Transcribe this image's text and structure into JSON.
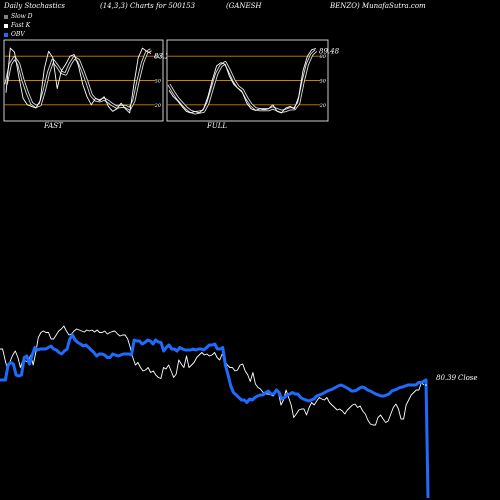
{
  "header": {
    "title_left": "Daily Stochastics",
    "title_params": "(14,3,3) Charts for 500153",
    "title_company_a": "(GANESH",
    "title_company_b": "BENZO) MunafaSutra.com"
  },
  "legend": [
    {
      "label": "Slow  D",
      "color": "#808080"
    },
    {
      "label": "Fast K",
      "color": "#ffffff"
    },
    {
      "label": "OBV",
      "color": "#1e6cff"
    }
  ],
  "colors": {
    "background": "#000000",
    "level_line": "#d08000",
    "obv": "#1e6cff",
    "close": "#ffffff",
    "slow_d": "#999999"
  },
  "chart_data": [
    {
      "type": "line",
      "panel": "FAST",
      "title": "FAST",
      "last_value_label": "83.29",
      "ylim": [
        0,
        100
      ],
      "levels": [
        20,
        50,
        80
      ],
      "level_labels": [
        "20",
        "50",
        "80"
      ],
      "series": [
        {
          "name": "Fast K",
          "values": [
            35,
            90,
            85,
            55,
            28,
            20,
            18,
            16,
            25,
            65,
            86,
            78,
            40,
            62,
            70,
            80,
            82,
            68,
            45,
            30,
            20,
            28,
            25,
            30,
            18,
            12,
            15,
            22,
            15,
            10,
            45,
            78,
            90,
            86,
            83.3
          ]
        },
        {
          "name": "Slow  D",
          "values": [
            45,
            70,
            78,
            70,
            50,
            35,
            22,
            18,
            20,
            38,
            60,
            75,
            68,
            60,
            58,
            70,
            78,
            75,
            62,
            48,
            32,
            26,
            25,
            27,
            24,
            20,
            17,
            18,
            18,
            15,
            25,
            50,
            72,
            85,
            88
          ]
        }
      ]
    },
    {
      "type": "line",
      "panel": "FULL",
      "title": "FULL",
      "last_value_label": "89.48",
      "ylim": [
        0,
        100
      ],
      "levels": [
        20,
        50,
        80
      ],
      "level_labels": [
        "20",
        "50",
        "80"
      ],
      "series": [
        {
          "name": "Fast K",
          "values": [
            38,
            30,
            25,
            18,
            12,
            10,
            12,
            10,
            15,
            30,
            50,
            68,
            72,
            70,
            55,
            45,
            40,
            35,
            22,
            15,
            13,
            15,
            14,
            15,
            20,
            12,
            10,
            16,
            18,
            15,
            30,
            62,
            80,
            88,
            89.5
          ]
        },
        {
          "name": "Slow  D",
          "values": [
            45,
            36,
            28,
            22,
            16,
            12,
            10,
            11,
            12,
            22,
            40,
            58,
            68,
            72,
            62,
            50,
            42,
            38,
            28,
            20,
            15,
            14,
            14,
            14,
            16,
            14,
            12,
            13,
            15,
            15,
            22,
            48,
            70,
            82,
            87
          ]
        }
      ]
    },
    {
      "type": "line",
      "panel": "price",
      "close_label": "80.39",
      "close_suffix": "Close",
      "series": [
        {
          "name": "Close",
          "values": [
            62,
            62,
            40,
            20,
            38,
            50,
            58,
            45,
            25,
            40,
            38,
            36,
            50,
            30,
            55,
            85,
            95,
            98,
            95,
            95,
            82,
            82,
            90,
            98,
            102,
            108,
            98,
            90,
            92,
            98,
            102,
            100,
            98,
            96,
            100,
            98,
            100,
            96,
            100,
            95,
            95,
            98,
            92,
            95,
            97,
            98,
            92,
            88,
            90,
            90,
            82,
            65,
            45,
            30,
            35,
            25,
            18,
            20,
            25,
            15,
            18,
            10,
            5,
            3,
            25,
            22,
            30,
            18,
            5,
            12,
            40,
            32,
            25,
            48,
            25,
            30,
            35,
            45,
            50,
            55,
            50,
            52,
            48,
            50,
            55,
            45,
            40,
            52,
            38,
            30,
            25,
            25,
            18,
            20,
            30,
            32,
            18,
            10,
            -3,
            15,
            -8,
            -15,
            -18,
            -25,
            -28,
            -28,
            -30,
            -32,
            -18,
            -25,
            -50,
            -40,
            -20,
            -35,
            -50,
            -75,
            -68,
            -60,
            -58,
            -58,
            -70,
            -55,
            -45,
            -50,
            -42,
            -35,
            -38,
            -40,
            -35,
            -45,
            -50,
            -55,
            -60,
            -58,
            -62,
            -68,
            -60,
            -55,
            -50,
            -48,
            -55,
            -52,
            -62,
            -68,
            -80,
            -88,
            -90,
            -90,
            -75,
            -70,
            -78,
            -85,
            -82,
            -68,
            -55,
            -48,
            -58,
            -78,
            -78,
            -50,
            -40,
            -30,
            -25,
            -20,
            -20,
            -5,
            -10
          ]
        },
        {
          "name": "OBV",
          "values": [
            10,
            10,
            10,
            40,
            45,
            42,
            20,
            18,
            20,
            55,
            58,
            42,
            60,
            75,
            70,
            72,
            72,
            72,
            75,
            78,
            72,
            70,
            65,
            62,
            68,
            72,
            92,
            100,
            90,
            85,
            82,
            78,
            80,
            75,
            70,
            65,
            58,
            62,
            62,
            60,
            55,
            55,
            62,
            60,
            58,
            60,
            62,
            62,
            62,
            60,
            90,
            88,
            88,
            82,
            85,
            90,
            88,
            82,
            90,
            86,
            85,
            68,
            75,
            80,
            72,
            72,
            68,
            75,
            72,
            70,
            70,
            70,
            72,
            70,
            72,
            72,
            70,
            75,
            80,
            80,
            82,
            72,
            72,
            75,
            40,
            20,
            -2,
            -15,
            -20,
            -25,
            -30,
            -30,
            -35,
            -28,
            -30,
            -25,
            -22,
            -20,
            -20,
            -15,
            -12,
            -18,
            -18,
            -10,
            -15,
            -28,
            -25,
            -20,
            -18,
            -15,
            -18,
            -18,
            -25,
            -28,
            -30,
            -32,
            -30,
            -28,
            -22,
            -20,
            -18,
            -15,
            -12,
            -10,
            -8,
            -5,
            -2,
            0,
            -2,
            -5,
            -8,
            -12,
            -12,
            -10,
            -6,
            -4,
            -6,
            -10,
            -12,
            -15,
            -18,
            -20,
            -22,
            -22,
            -20,
            -18,
            -12,
            -10,
            -8,
            -5,
            -4,
            -2,
            0,
            0,
            0,
            0,
            5,
            5,
            8
          ]
        }
      ]
    }
  ]
}
